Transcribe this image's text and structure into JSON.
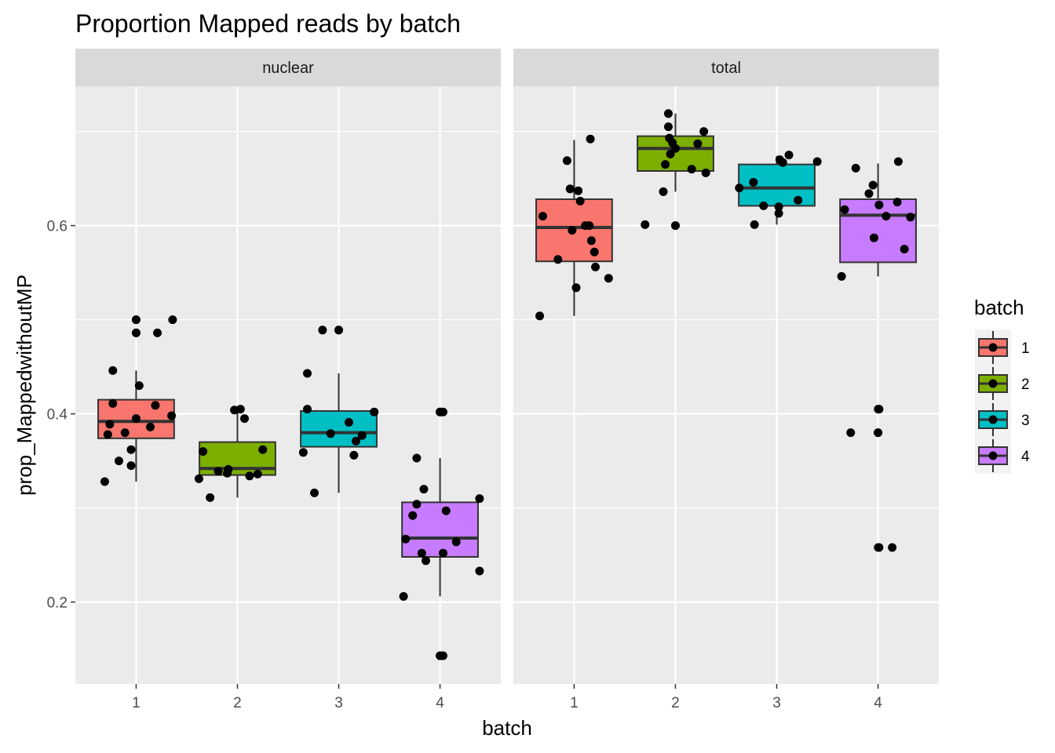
{
  "chart_data": {
    "type": "boxplot",
    "title": "Proportion Mapped reads by batch",
    "xlabel": "batch",
    "ylabel": "prop_MappedwithoutMP",
    "categories": [
      "1",
      "2",
      "3",
      "4"
    ],
    "y_ticks": [
      "0.2",
      "0.4",
      "0.6"
    ],
    "y_tick_values": [
      0.2,
      0.4,
      0.6
    ],
    "ylim": [
      0.113,
      0.748
    ],
    "grid": true,
    "legend": {
      "title": "batch",
      "position": "right",
      "items": [
        {
          "label": "1",
          "color": "#F8766D"
        },
        {
          "label": "2",
          "color": "#7CAE00"
        },
        {
          "label": "3",
          "color": "#00BFC4"
        },
        {
          "label": "4",
          "color": "#C77CFF"
        }
      ]
    },
    "facets": [
      {
        "label": "nuclear",
        "boxes": [
          {
            "batch": "1",
            "q1": 0.374,
            "median": 0.392,
            "q3": 0.415,
            "whisker_low": 0.328,
            "whisker_high": 0.446,
            "outliers": [
              0.5,
              0.486
            ],
            "points": [
              [
                -0.31,
                0.328
              ],
              [
                -0.28,
                0.378
              ],
              [
                -0.26,
                0.389
              ],
              [
                -0.23,
                0.411
              ],
              [
                -0.23,
                0.446
              ],
              [
                -0.17,
                0.35
              ],
              [
                -0.11,
                0.38
              ],
              [
                -0.05,
                0.345
              ],
              [
                -0.05,
                0.362
              ],
              [
                0.0,
                0.395
              ],
              [
                0.03,
                0.43
              ],
              [
                0.14,
                0.386
              ],
              [
                0.19,
                0.409
              ],
              [
                0.35,
                0.398
              ],
              [
                0.36,
                0.5
              ],
              [
                0.21,
                0.486
              ],
              [
                0.0,
                0.5
              ],
              [
                0.0,
                0.486
              ]
            ]
          },
          {
            "batch": "2",
            "q1": 0.335,
            "median": 0.342,
            "q3": 0.37,
            "whisker_low": 0.311,
            "whisker_high": 0.403,
            "outliers": [],
            "points": [
              [
                -0.38,
                0.331
              ],
              [
                -0.34,
                0.36
              ],
              [
                -0.27,
                0.311
              ],
              [
                -0.19,
                0.339
              ],
              [
                -0.1,
                0.337
              ],
              [
                -0.09,
                0.341
              ],
              [
                -0.03,
                0.404
              ],
              [
                0.03,
                0.405
              ],
              [
                0.07,
                0.395
              ],
              [
                0.12,
                0.334
              ],
              [
                0.2,
                0.336
              ],
              [
                0.25,
                0.362
              ]
            ]
          },
          {
            "batch": "3",
            "q1": 0.365,
            "median": 0.38,
            "q3": 0.403,
            "whisker_low": 0.316,
            "whisker_high": 0.443,
            "outliers": [
              0.489
            ],
            "points": [
              [
                -0.35,
                0.359
              ],
              [
                -0.31,
                0.405
              ],
              [
                -0.31,
                0.443
              ],
              [
                -0.24,
                0.316
              ],
              [
                -0.16,
                0.489
              ],
              [
                -0.08,
                0.379
              ],
              [
                0.1,
                0.391
              ],
              [
                0.15,
                0.356
              ],
              [
                0.17,
                0.371
              ],
              [
                0.23,
                0.377
              ],
              [
                0.35,
                0.402
              ],
              [
                0.0,
                0.489
              ]
            ]
          },
          {
            "batch": "4",
            "q1": 0.248,
            "median": 0.268,
            "q3": 0.306,
            "whisker_low": 0.206,
            "whisker_high": 0.353,
            "outliers": [
              0.402,
              0.143
            ],
            "points": [
              [
                -0.36,
                0.206
              ],
              [
                -0.34,
                0.267
              ],
              [
                -0.27,
                0.292
              ],
              [
                -0.23,
                0.304
              ],
              [
                -0.23,
                0.353
              ],
              [
                -0.18,
                0.252
              ],
              [
                -0.16,
                0.32
              ],
              [
                -0.14,
                0.244
              ],
              [
                0.03,
                0.252
              ],
              [
                0.06,
                0.297
              ],
              [
                0.16,
                0.264
              ],
              [
                0.39,
                0.31
              ],
              [
                0.39,
                0.233
              ],
              [
                0.03,
                0.402
              ],
              [
                0.03,
                0.143
              ],
              [
                0.0,
                0.402
              ],
              [
                0.0,
                0.143
              ]
            ]
          }
        ]
      },
      {
        "label": "total",
        "boxes": [
          {
            "batch": "1",
            "q1": 0.562,
            "median": 0.598,
            "q3": 0.628,
            "whisker_low": 0.504,
            "whisker_high": 0.691,
            "outliers": [],
            "points": [
              [
                -0.34,
                0.504
              ],
              [
                -0.31,
                0.61
              ],
              [
                -0.16,
                0.564
              ],
              [
                -0.07,
                0.669
              ],
              [
                -0.04,
                0.639
              ],
              [
                -0.02,
                0.595
              ],
              [
                0.02,
                0.534
              ],
              [
                0.04,
                0.637
              ],
              [
                0.06,
                0.626
              ],
              [
                0.11,
                0.6
              ],
              [
                0.15,
                0.6
              ],
              [
                0.16,
                0.692
              ],
              [
                0.17,
                0.584
              ],
              [
                0.2,
                0.572
              ],
              [
                0.21,
                0.556
              ],
              [
                0.34,
                0.544
              ]
            ]
          },
          {
            "batch": "2",
            "q1": 0.658,
            "median": 0.682,
            "q3": 0.695,
            "whisker_low": 0.636,
            "whisker_high": 0.719,
            "outliers": [
              0.6
            ],
            "points": [
              [
                -0.3,
                0.601
              ],
              [
                -0.12,
                0.636
              ],
              [
                -0.1,
                0.665
              ],
              [
                -0.07,
                0.719
              ],
              [
                -0.07,
                0.705
              ],
              [
                -0.06,
                0.693
              ],
              [
                -0.05,
                0.676
              ],
              [
                -0.03,
                0.688
              ],
              [
                0.0,
                0.682
              ],
              [
                0.16,
                0.66
              ],
              [
                0.22,
                0.687
              ],
              [
                0.28,
                0.7
              ],
              [
                0.3,
                0.656
              ],
              [
                0.0,
                0.6
              ]
            ]
          },
          {
            "batch": "3",
            "q1": 0.621,
            "median": 0.64,
            "q3": 0.665,
            "whisker_low": 0.601,
            "whisker_high": 0.674,
            "outliers": [],
            "points": [
              [
                -0.37,
                0.64
              ],
              [
                -0.22,
                0.601
              ],
              [
                -0.23,
                0.646
              ],
              [
                -0.13,
                0.621
              ],
              [
                0.02,
                0.613
              ],
              [
                0.02,
                0.62
              ],
              [
                0.03,
                0.67
              ],
              [
                0.06,
                0.667
              ],
              [
                0.12,
                0.675
              ],
              [
                0.21,
                0.627
              ],
              [
                0.4,
                0.668
              ]
            ]
          },
          {
            "batch": "4",
            "q1": 0.561,
            "median": 0.611,
            "q3": 0.628,
            "whisker_low": 0.546,
            "whisker_high": 0.666,
            "outliers": [
              0.405,
              0.38,
              0.258
            ],
            "points": [
              [
                -0.36,
                0.546
              ],
              [
                -0.33,
                0.617
              ],
              [
                -0.27,
                0.38
              ],
              [
                -0.22,
                0.661
              ],
              [
                -0.09,
                0.634
              ],
              [
                -0.05,
                0.643
              ],
              [
                -0.04,
                0.587
              ],
              [
                0.01,
                0.622
              ],
              [
                0.01,
                0.405
              ],
              [
                0.01,
                0.258
              ],
              [
                0.08,
                0.61
              ],
              [
                0.14,
                0.258
              ],
              [
                0.19,
                0.625
              ],
              [
                0.2,
                0.668
              ],
              [
                0.26,
                0.575
              ],
              [
                0.32,
                0.609
              ],
              [
                0.0,
                0.38
              ]
            ]
          }
        ]
      }
    ]
  }
}
